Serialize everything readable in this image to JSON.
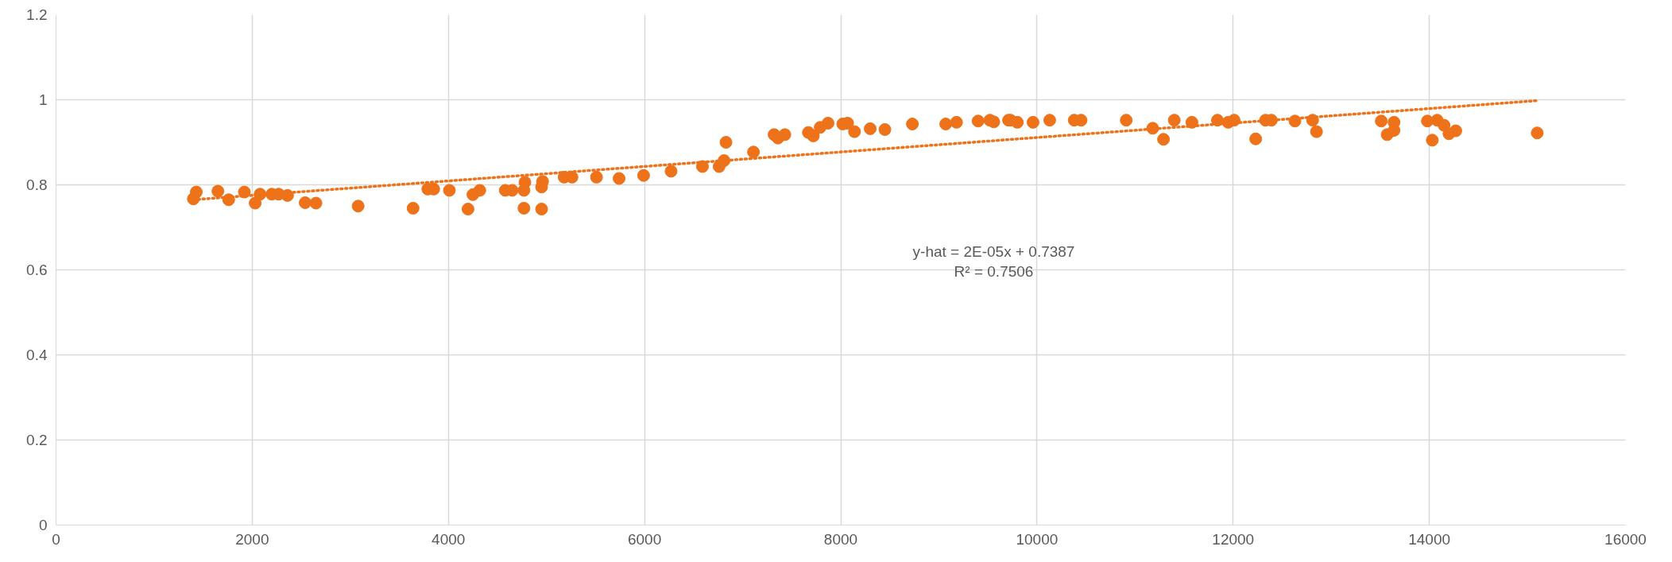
{
  "chart_data": {
    "type": "scatter",
    "xlim": [
      0,
      16000
    ],
    "ylim": [
      0,
      1.2
    ],
    "xticks": [
      0,
      2000,
      4000,
      6000,
      8000,
      10000,
      12000,
      14000,
      16000
    ],
    "yticks": [
      0,
      0.2,
      0.4,
      0.6,
      0.8,
      1,
      1.2
    ],
    "grid": true,
    "marker": "circle",
    "series": [
      {
        "color": "#ee7219",
        "x": [
          1400,
          1430,
          1650,
          1760,
          1920,
          2030,
          2080,
          2200,
          2270,
          2360,
          2540,
          2650,
          3080,
          3640,
          3790,
          3850,
          4010,
          4200,
          4250,
          4320,
          4580,
          4650,
          4770,
          4770,
          4780,
          4950,
          4950,
          4960,
          5180,
          5260,
          5510,
          5740,
          5990,
          6270,
          6590,
          6760,
          6810,
          6830,
          7110,
          7320,
          7360,
          7430,
          7670,
          7720,
          7790,
          7870,
          8020,
          8070,
          8140,
          8300,
          8450,
          8730,
          9070,
          9180,
          9400,
          9520,
          9560,
          9710,
          9730,
          9800,
          9960,
          10130,
          10380,
          10450,
          10910,
          11180,
          11290,
          11400,
          11580,
          11840,
          11950,
          12010,
          12230,
          12330,
          12390,
          12630,
          12810,
          12850,
          13510,
          13570,
          13640,
          13640,
          13980,
          14030,
          14080,
          14150,
          14200,
          14270,
          15100
        ],
        "values": [
          0.767,
          0.783,
          0.785,
          0.765,
          0.783,
          0.757,
          0.778,
          0.778,
          0.778,
          0.775,
          0.758,
          0.757,
          0.75,
          0.745,
          0.79,
          0.79,
          0.787,
          0.743,
          0.777,
          0.787,
          0.787,
          0.787,
          0.745,
          0.787,
          0.806,
          0.743,
          0.795,
          0.808,
          0.818,
          0.818,
          0.818,
          0.815,
          0.822,
          0.832,
          0.843,
          0.843,
          0.857,
          0.9,
          0.877,
          0.918,
          0.91,
          0.918,
          0.923,
          0.915,
          0.935,
          0.945,
          0.943,
          0.945,
          0.925,
          0.932,
          0.93,
          0.943,
          0.943,
          0.947,
          0.95,
          0.952,
          0.948,
          0.952,
          0.952,
          0.947,
          0.947,
          0.952,
          0.952,
          0.952,
          0.952,
          0.933,
          0.907,
          0.952,
          0.947,
          0.952,
          0.947,
          0.952,
          0.908,
          0.952,
          0.952,
          0.95,
          0.952,
          0.925,
          0.95,
          0.918,
          0.928,
          0.947,
          0.95,
          0.905,
          0.952,
          0.94,
          0.92,
          0.927,
          0.922
        ]
      },
      {
        "type": "line",
        "color": "#ee7219",
        "line_style": "dotted",
        "marker": "none",
        "x": [
          1400,
          15100
        ],
        "values": [
          0.765,
          0.998
        ]
      }
    ],
    "annotations": [
      "y-hat = 2E-05x + 0.7387\nR² = 0.7506"
    ]
  }
}
